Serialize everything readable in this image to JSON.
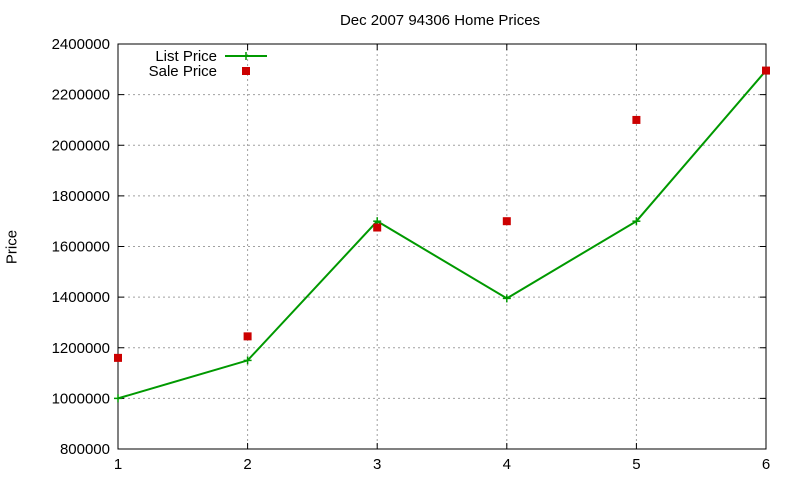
{
  "chart_data": {
    "type": "line",
    "title": "Dec 2007 94306 Home Prices",
    "xlabel": "",
    "ylabel": "Price",
    "x": [
      1,
      2,
      3,
      4,
      5,
      6
    ],
    "xlim": [
      1,
      6
    ],
    "ylim": [
      800000,
      2400000
    ],
    "xticks": [
      1,
      2,
      3,
      4,
      5,
      6
    ],
    "yticks": [
      800000,
      1000000,
      1200000,
      1400000,
      1600000,
      1800000,
      2000000,
      2200000,
      2400000
    ],
    "grid": true,
    "legend_position": "top-left",
    "series": [
      {
        "name": "List Price",
        "style": "line+cross",
        "color": "#009900",
        "values": [
          1000000,
          1150000,
          1700000,
          1395000,
          1700000,
          2295000
        ]
      },
      {
        "name": "Sale Price",
        "style": "square-points",
        "color": "#cc0000",
        "values": [
          1160000,
          1245000,
          1675000,
          1700000,
          2100000,
          2295000
        ]
      }
    ]
  }
}
